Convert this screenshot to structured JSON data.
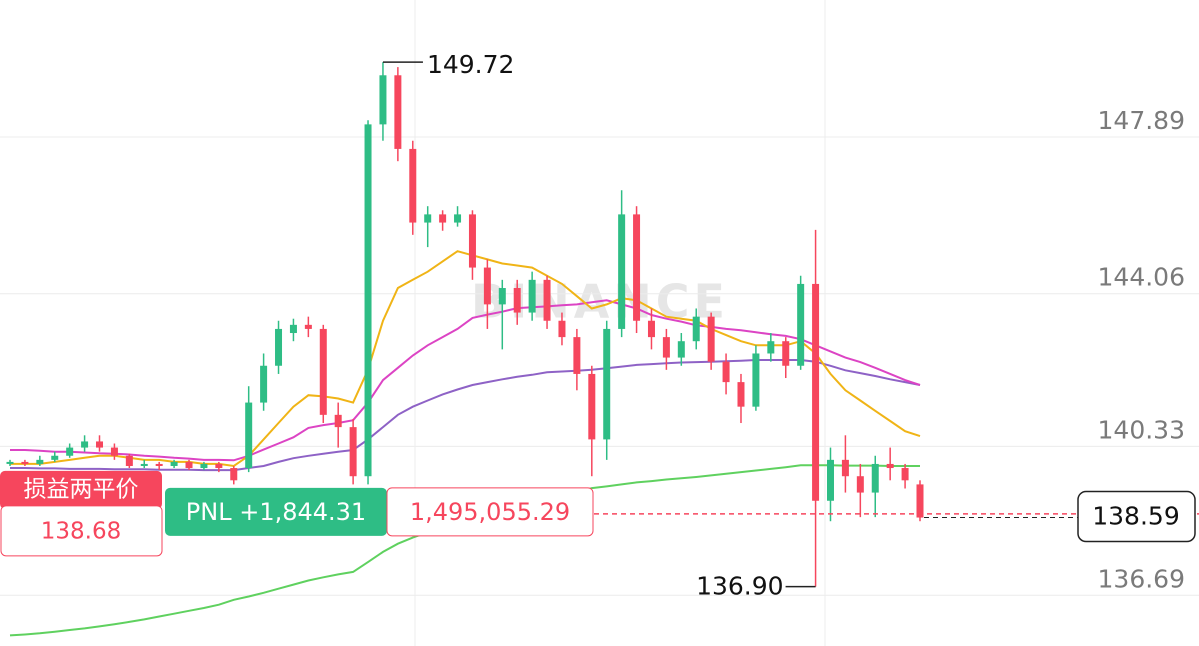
{
  "chart_data": {
    "type": "candlestick",
    "watermark": "BINANCE",
    "ylim": [
      135.45,
      151.24
    ],
    "yticks": [
      136.69,
      140.33,
      144.06,
      147.89
    ],
    "grid": true,
    "up_color": "#2ebd85",
    "down_color": "#f6465d",
    "open": [
      139.9,
      139.95,
      139.9,
      140.0,
      140.1,
      140.3,
      140.45,
      140.3,
      140.1,
      139.85,
      139.9,
      139.85,
      139.95,
      139.8,
      139.9,
      139.8,
      139.8,
      141.4,
      142.3,
      143.1,
      143.3,
      143.2,
      141.1,
      140.8,
      139.6,
      148.2,
      149.4,
      147.6,
      145.8,
      146.0,
      145.8,
      146.0,
      144.7,
      143.8,
      144.2,
      143.6,
      144.4,
      143.4,
      143.0,
      142.1,
      140.5,
      143.2,
      146.0,
      143.4,
      143.0,
      142.5,
      142.9,
      143.5,
      142.4,
      141.9,
      141.3,
      142.6,
      142.9,
      142.3,
      144.3,
      139.0,
      140.0,
      139.6,
      139.2,
      139.9,
      139.8,
      139.4
    ],
    "high": [
      140.0,
      140.0,
      140.1,
      140.2,
      140.4,
      140.6,
      140.6,
      140.4,
      140.15,
      140.0,
      139.95,
      140.0,
      140.0,
      139.95,
      139.95,
      139.85,
      141.8,
      142.6,
      143.4,
      143.45,
      143.5,
      143.3,
      141.4,
      141.0,
      148.3,
      149.72,
      149.6,
      147.8,
      146.2,
      146.1,
      146.2,
      146.1,
      144.9,
      144.4,
      144.4,
      144.6,
      144.5,
      143.6,
      143.2,
      142.3,
      143.4,
      146.59,
      146.2,
      143.7,
      143.2,
      143.1,
      143.7,
      143.6,
      142.6,
      142.1,
      142.8,
      143.1,
      143.0,
      144.5,
      145.62,
      140.3,
      140.6,
      139.9,
      140.1,
      140.3,
      139.9,
      139.5
    ],
    "low": [
      139.85,
      139.85,
      139.85,
      139.95,
      140.05,
      140.2,
      140.2,
      140.0,
      139.8,
      139.8,
      139.75,
      139.8,
      139.75,
      139.75,
      139.7,
      139.4,
      139.7,
      141.2,
      142.1,
      142.9,
      143.0,
      140.9,
      140.3,
      139.4,
      139.4,
      147.8,
      147.3,
      145.5,
      145.2,
      145.6,
      145.7,
      144.4,
      143.2,
      142.7,
      143.3,
      143.4,
      143.2,
      142.8,
      141.7,
      139.6,
      140.0,
      143.0,
      143.1,
      142.7,
      142.2,
      142.3,
      142.7,
      142.2,
      141.6,
      140.9,
      141.2,
      142.4,
      142.0,
      142.2,
      136.9,
      138.5,
      139.2,
      138.6,
      138.6,
      139.5,
      139.3,
      138.5
    ],
    "close": [
      139.95,
      139.9,
      140.0,
      140.1,
      140.3,
      140.45,
      140.3,
      140.1,
      139.85,
      139.9,
      139.85,
      139.95,
      139.8,
      139.9,
      139.8,
      139.5,
      141.4,
      142.3,
      143.2,
      143.3,
      143.2,
      141.1,
      140.8,
      139.6,
      148.2,
      149.4,
      147.6,
      145.8,
      146.0,
      145.8,
      146.0,
      144.7,
      143.8,
      144.2,
      143.6,
      144.4,
      143.4,
      143.0,
      142.1,
      140.5,
      143.2,
      146.0,
      143.4,
      143.0,
      142.5,
      142.9,
      143.5,
      142.4,
      141.9,
      141.3,
      142.6,
      142.9,
      142.3,
      144.3,
      139.0,
      140.0,
      139.6,
      139.2,
      139.9,
      139.8,
      139.5,
      138.59
    ],
    "series": [
      {
        "color": "#5fd15f",
        "values": [
          135.71,
          135.73,
          135.76,
          135.8,
          135.84,
          135.88,
          135.93,
          135.98,
          136.04,
          136.1,
          136.17,
          136.24,
          136.31,
          136.38,
          136.46,
          136.58,
          136.66,
          136.75,
          136.85,
          136.95,
          137.05,
          137.13,
          137.2,
          137.26,
          137.5,
          137.75,
          137.95,
          138.1,
          138.23,
          138.33,
          138.43,
          138.52,
          138.58,
          138.62,
          138.67,
          138.8,
          138.95,
          139.08,
          139.2,
          139.31,
          139.35,
          139.4,
          139.45,
          139.48,
          139.52,
          139.55,
          139.58,
          139.62,
          139.66,
          139.7,
          139.74,
          139.78,
          139.82,
          139.87,
          139.87,
          139.87,
          139.86,
          139.86,
          139.86,
          139.85,
          139.85,
          139.85
        ]
      },
      {
        "color": "#8e62c6",
        "values": [
          139.8,
          139.8,
          139.79,
          139.79,
          139.78,
          139.78,
          139.78,
          139.77,
          139.77,
          139.77,
          139.76,
          139.76,
          139.76,
          139.75,
          139.75,
          139.75,
          139.8,
          139.85,
          139.95,
          140.04,
          140.1,
          140.15,
          140.2,
          140.24,
          140.5,
          140.8,
          141.1,
          141.3,
          141.45,
          141.6,
          141.72,
          141.83,
          141.9,
          141.97,
          142.03,
          142.08,
          142.14,
          142.16,
          142.18,
          142.2,
          142.24,
          142.28,
          142.32,
          142.34,
          142.36,
          142.38,
          142.39,
          142.4,
          142.41,
          142.42,
          142.44,
          142.44,
          142.44,
          142.44,
          142.4,
          142.3,
          142.19,
          142.12,
          142.05,
          141.97,
          141.9,
          141.83
        ]
      },
      {
        "color": "#dc44c4",
        "values": [
          140.24,
          140.24,
          140.22,
          140.2,
          140.2,
          140.18,
          140.16,
          140.15,
          140.13,
          140.1,
          140.08,
          140.05,
          140.03,
          140.0,
          140.0,
          139.99,
          140.1,
          140.25,
          140.4,
          140.55,
          140.78,
          140.85,
          140.9,
          140.97,
          141.4,
          141.95,
          142.25,
          142.55,
          142.8,
          143.0,
          143.2,
          143.47,
          143.55,
          143.62,
          143.71,
          143.73,
          143.75,
          143.78,
          143.8,
          143.85,
          143.9,
          143.8,
          143.7,
          143.54,
          143.45,
          143.38,
          143.29,
          143.25,
          143.2,
          143.17,
          143.12,
          143.07,
          143.03,
          142.95,
          142.8,
          142.65,
          142.5,
          142.39,
          142.25,
          142.1,
          141.95,
          141.83
        ]
      },
      {
        "color": "#f0b416",
        "values": [
          139.9,
          139.9,
          139.9,
          139.95,
          140.0,
          140.05,
          140.1,
          140.1,
          140.05,
          140.0,
          140.0,
          139.95,
          139.95,
          139.9,
          139.9,
          139.85,
          140.1,
          140.5,
          140.9,
          141.3,
          141.58,
          141.55,
          141.5,
          141.4,
          142.2,
          143.4,
          144.2,
          144.4,
          144.6,
          144.85,
          145.1,
          145.0,
          144.9,
          144.8,
          144.75,
          144.7,
          144.5,
          144.3,
          144.0,
          143.7,
          143.8,
          143.95,
          143.9,
          143.7,
          143.5,
          143.45,
          143.4,
          143.2,
          143.05,
          142.9,
          142.8,
          142.8,
          142.8,
          142.9,
          142.6,
          142.1,
          141.7,
          141.45,
          141.2,
          140.95,
          140.7,
          140.58
        ]
      }
    ],
    "high_annotation": 149.72,
    "low_annotation": {
      "value": 136.9,
      "label": "136.90"
    },
    "last_price": 138.59,
    "position": {
      "title": "损益两平价",
      "break_even": 138.68,
      "pnl": {
        "value": 1844.31,
        "label": "PNL +1,844.31"
      },
      "size": {
        "value": 1495055.29,
        "label": "1,495,055.29"
      }
    }
  }
}
